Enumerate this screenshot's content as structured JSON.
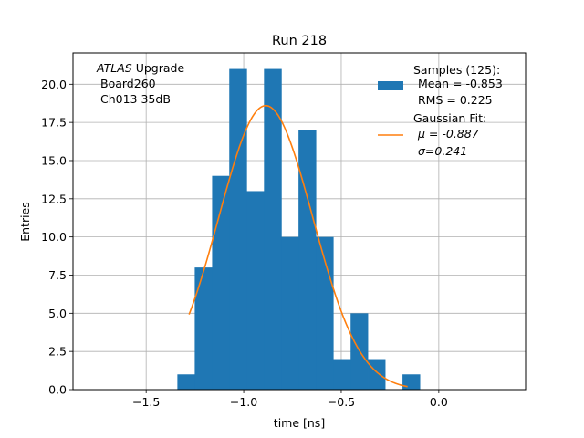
{
  "chart_data": {
    "type": "bar",
    "title": "Run 218",
    "xlabel": "time [ns]",
    "ylabel": "Entries",
    "xlim": [
      -1.875,
      0.445
    ],
    "ylim": [
      0,
      22.05
    ],
    "xticks": [
      -1.5,
      -1.0,
      -0.5,
      0.0
    ],
    "xtick_labels": [
      "−1.5",
      "−1.0",
      "−0.5",
      "0.0"
    ],
    "yticks": [
      0,
      2.5,
      5,
      7.5,
      10,
      12.5,
      15,
      17.5,
      20
    ],
    "ytick_labels": [
      "0.0",
      "2.5",
      "5.0",
      "7.5",
      "10.0",
      "12.5",
      "15.0",
      "17.5",
      "20.0"
    ],
    "grid": true,
    "bin_edges": [
      -1.34,
      -1.251,
      -1.162,
      -1.074,
      -0.985,
      -0.896,
      -0.807,
      -0.719,
      -0.63,
      -0.541,
      -0.452,
      -0.364,
      -0.275,
      -0.186,
      -0.097
    ],
    "histogram": {
      "name": "Samples (125):",
      "color": "#1f77b4",
      "counts": [
        1,
        8,
        14,
        21,
        13,
        21,
        10,
        17,
        10,
        2,
        5,
        2,
        0,
        1
      ]
    },
    "fit": {
      "name": "Gaussian Fit:",
      "color": "#ff7f0e",
      "type": "gaussian",
      "amplitude": 18.6,
      "mu": -0.887,
      "sigma": 0.241,
      "x_range": [
        -1.28,
        -0.16
      ]
    },
    "annotation": {
      "italic": "ATLAS",
      "rest": " Upgrade",
      "line2": "Board260",
      "line3": "Ch013 35dB"
    },
    "legend": {
      "position": "top-right",
      "entries": [
        {
          "title": "Samples (125):",
          "lines": [
            "Mean = -0.853",
            "RMS = 0.225"
          ],
          "kind": "patch",
          "color": "#1f77b4"
        },
        {
          "title": "Gaussian Fit:",
          "lines": [
            "μ = -0.887",
            "σ=0.241"
          ],
          "kind": "line",
          "color": "#ff7f0e"
        }
      ]
    }
  }
}
